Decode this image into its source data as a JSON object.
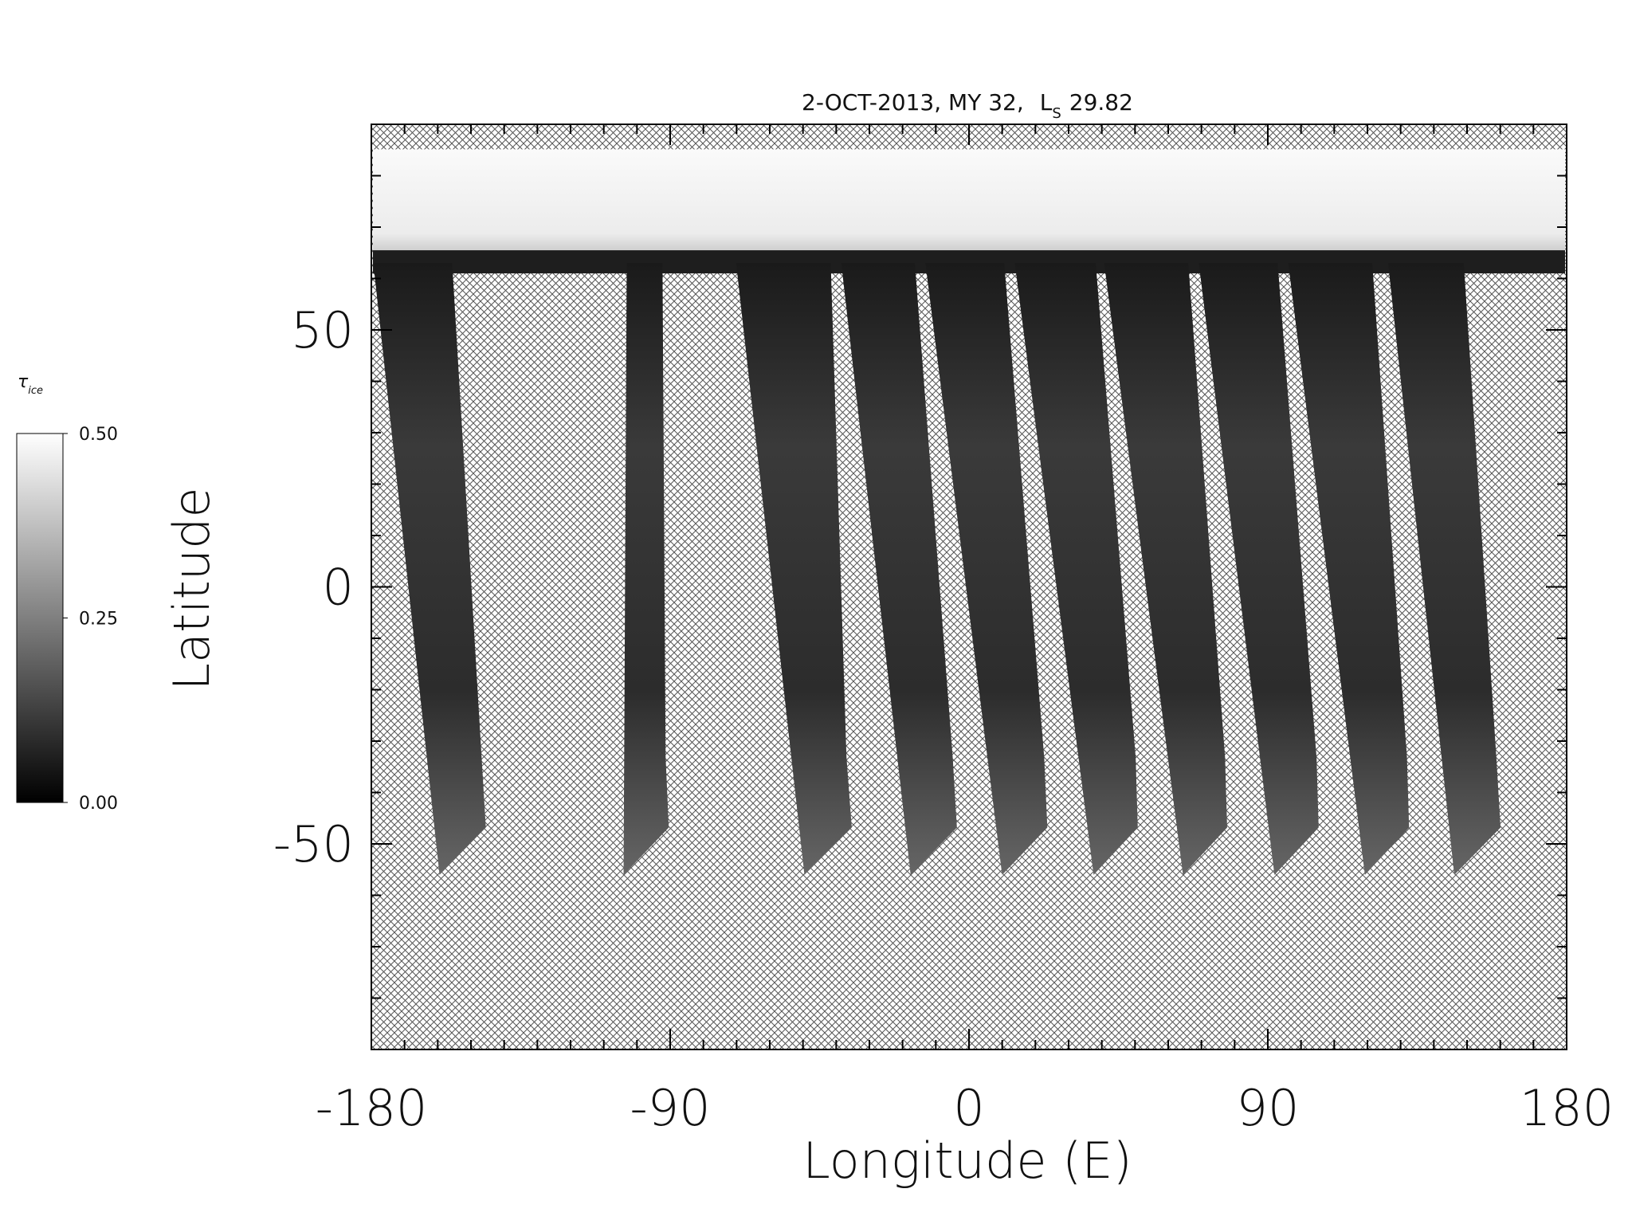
{
  "chart_data": {
    "type": "map",
    "title": {
      "date": "2-OCT-2013, MY 32,",
      "ls_symbol": "L",
      "ls_subscript": "S",
      "ls_value": 29.82
    },
    "xlabel": "Longitude (E)",
    "ylabel": "Latitude",
    "xlim": [
      -180,
      180
    ],
    "ylim": [
      -90,
      90
    ],
    "xticks": [
      -180,
      -90,
      0,
      90,
      180
    ],
    "yticks": [
      -50,
      0,
      50
    ],
    "colorbar": {
      "label_symbol": "τ",
      "label_subscript": "ice",
      "range": [
        0,
        0.5
      ],
      "ticks": [
        {
          "value": 0,
          "label": "0.00"
        },
        {
          "value": 0.25,
          "label": "0.25"
        },
        {
          "value": 0.5,
          "label": "0.50"
        }
      ],
      "colors": [
        "#000000",
        "#ffffff"
      ]
    },
    "hatch_color": "#555555"
  }
}
